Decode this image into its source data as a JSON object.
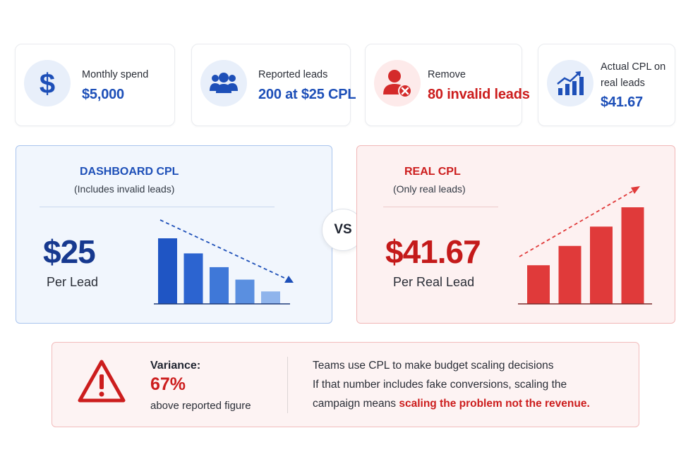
{
  "stats": [
    {
      "label": "Monthly spend",
      "value": "$5,000",
      "icon": "dollar-icon"
    },
    {
      "label": "Reported leads",
      "value": "200 at $25 CPL",
      "icon": "users-icon"
    },
    {
      "label": "Remove",
      "value": "80 invalid leads",
      "icon": "remove-user-icon"
    },
    {
      "label_line1": "Actual CPL on",
      "label_line2": "real leads",
      "value": "$41.67",
      "icon": "growth-chart-icon"
    }
  ],
  "dashboard": {
    "title": "DASHBOARD CPL",
    "subtitle": "(Includes invalid leads)",
    "value": "$25",
    "caption": "Per Lead",
    "trend": "down",
    "bars_relative": [
      1.0,
      0.77,
      0.56,
      0.37,
      0.19
    ],
    "bar_colors": [
      "#1f55c4",
      "#2c64d0",
      "#3f78d8",
      "#5a8fe0",
      "#8fb4ec"
    ]
  },
  "vs": "VS",
  "real": {
    "title": "REAL CPL",
    "subtitle": "(Only real leads)",
    "value": "$41.67",
    "caption": "Per Real Lead",
    "trend": "up",
    "bars_relative": [
      0.4,
      0.6,
      0.8,
      1.0
    ],
    "bar_color": "#e03a3a"
  },
  "variance": {
    "label": "Variance:",
    "value": "67%",
    "caption": "above reported figure",
    "line1": "Teams use CPL to make budget scaling decisions",
    "line2": "If that number includes fake conversions, scaling the",
    "line3_prefix": "campaign means ",
    "line3_highlight": "scaling the problem not the revenue."
  },
  "colors": {
    "blue_accent": "#1d4fb8",
    "red_accent": "#cc1d1d",
    "blue_panel_bg": "#f1f6fd",
    "red_panel_bg": "#fdf1f1"
  }
}
